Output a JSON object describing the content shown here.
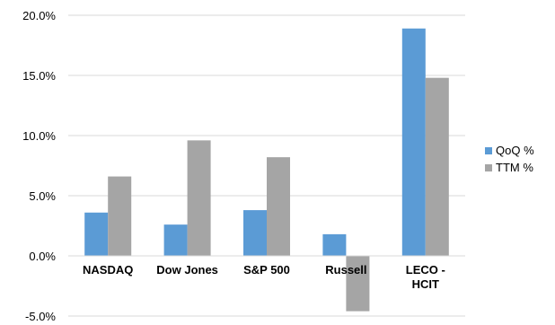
{
  "chart_data": {
    "type": "bar",
    "categories": [
      [
        "NASDAQ"
      ],
      [
        "Dow Jones"
      ],
      [
        "S&P 500"
      ],
      [
        "Russell"
      ],
      [
        "LECO -",
        "HCIT"
      ]
    ],
    "series": [
      {
        "name": "QoQ %",
        "color": "#5B9BD5",
        "values": [
          3.6,
          2.6,
          3.8,
          1.8,
          18.9
        ]
      },
      {
        "name": "TTM %",
        "color": "#A5A5A5",
        "values": [
          6.6,
          9.6,
          8.2,
          -4.6,
          14.8
        ]
      }
    ],
    "y_ticks": [
      "-5.0%",
      "0.0%",
      "5.0%",
      "10.0%",
      "15.0%",
      "20.0%"
    ],
    "ylim": [
      -5,
      20
    ],
    "grid": true,
    "legend_position": "right"
  }
}
